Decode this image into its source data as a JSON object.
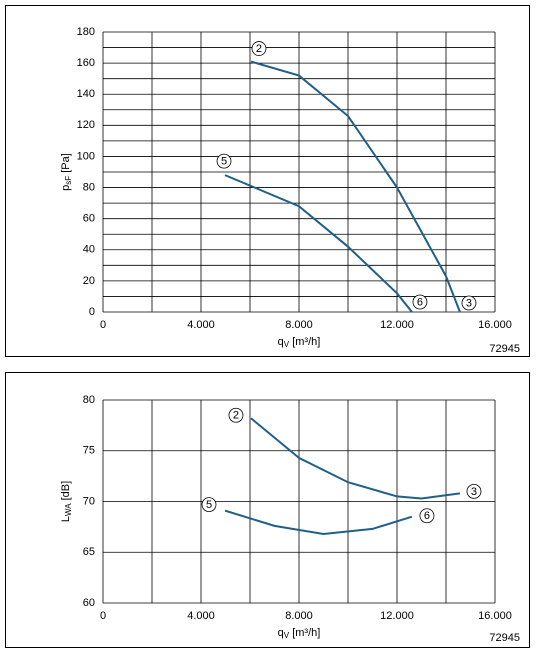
{
  "chart_data": [
    {
      "type": "line",
      "xlabel": {
        "main": "q",
        "sub": "V",
        "unit": " [m³/h]"
      },
      "ylabel": {
        "main": "p",
        "sub": "sF",
        "unit": " [Pa]"
      },
      "code": "72945",
      "xlim": [
        0,
        16000
      ],
      "xticks": [
        {
          "value": 0,
          "label": "0"
        },
        {
          "value": 4000,
          "label": "4.000"
        },
        {
          "value": 8000,
          "label": "8.000"
        },
        {
          "value": 12000,
          "label": "12.000"
        },
        {
          "value": 16000,
          "label": "16.000"
        }
      ],
      "x_minor_grid": [
        2000,
        6000,
        10000,
        14000
      ],
      "ylim": [
        0,
        180
      ],
      "yticks": [
        0,
        20,
        40,
        60,
        80,
        100,
        120,
        140,
        160,
        180
      ],
      "y_minor_grid": [
        10,
        30,
        50,
        70,
        90,
        110,
        130,
        150,
        170
      ],
      "grid": true,
      "series": [
        {
          "start_label": "2",
          "end_label": "3",
          "color": "#1f5f8b",
          "x": [
            6040,
            8000,
            10000,
            12000,
            14000,
            14570
          ],
          "values": [
            161,
            152,
            126,
            80,
            23,
            0
          ]
        },
        {
          "start_label": "5",
          "end_label": "6",
          "color": "#1f5f8b",
          "x": [
            4980,
            8000,
            10000,
            12000,
            12610
          ],
          "values": [
            88,
            68,
            42,
            12,
            0
          ]
        }
      ]
    },
    {
      "type": "line",
      "xlabel": {
        "main": "q",
        "sub": "V",
        "unit": " [m³/h]"
      },
      "ylabel": {
        "main": "L",
        "sub": "WA",
        "unit": " [dB]"
      },
      "code": "72945",
      "xlim": [
        0,
        16000
      ],
      "xticks": [
        {
          "value": 0,
          "label": "0"
        },
        {
          "value": 4000,
          "label": "4.000"
        },
        {
          "value": 8000,
          "label": "8.000"
        },
        {
          "value": 12000,
          "label": "12.000"
        },
        {
          "value": 16000,
          "label": "16.000"
        }
      ],
      "x_minor_grid": [
        2000,
        6000,
        10000,
        14000
      ],
      "ylim": [
        60,
        80
      ],
      "yticks": [
        60,
        65,
        70,
        75,
        80
      ],
      "y_minor_grid": [],
      "grid": true,
      "series": [
        {
          "start_label": "2",
          "end_label": "3",
          "color": "#1f5f8b",
          "x": [
            6040,
            8000,
            10000,
            12000,
            13000,
            14570
          ],
          "values": [
            78.2,
            74.3,
            71.9,
            70.5,
            70.3,
            70.8
          ]
        },
        {
          "start_label": "5",
          "end_label": "6",
          "color": "#1f5f8b",
          "x": [
            4980,
            7000,
            9000,
            11000,
            12610
          ],
          "values": [
            69.1,
            67.6,
            66.8,
            67.3,
            68.5
          ]
        }
      ]
    }
  ]
}
